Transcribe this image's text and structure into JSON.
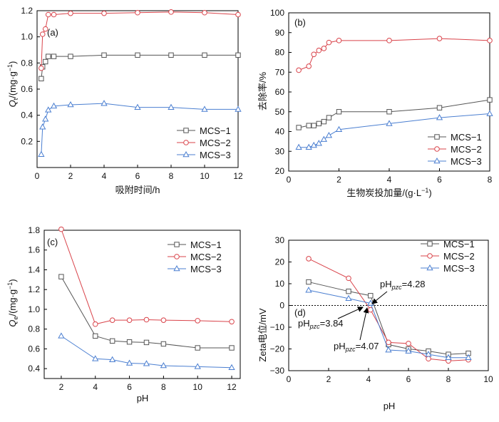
{
  "series_names": [
    "MCS−1",
    "MCS−2",
    "MCS−3"
  ],
  "colors": {
    "MCS−1": "#555555",
    "MCS−2": "#d9434a",
    "MCS−3": "#4b7fd1"
  },
  "markers": {
    "MCS−1": "square",
    "MCS−2": "circle",
    "MCS−3": "triangle"
  },
  "chart_data": [
    {
      "panel": "(a)",
      "type": "line",
      "xlabel": "吸附时间/h",
      "ylabel_main": "Q",
      "ylabel_sub": "t",
      "ylabel_unit": "/(mg·g",
      "ylabel_sup": "−1",
      "ylabel_close": ")",
      "xlim": [
        0,
        12
      ],
      "ylim": [
        0,
        1.2
      ],
      "xticks": [
        0,
        2,
        4,
        6,
        8,
        10,
        12
      ],
      "yticks": [
        0.2,
        0.4,
        0.6,
        0.8,
        1.0,
        1.2
      ],
      "xtick_labels": [
        "0",
        "2",
        "4",
        "6",
        "8",
        "10",
        "12"
      ],
      "ytick_labels": [
        "0.2",
        "0.4",
        "0.6",
        "0.8",
        "1.0",
        "1.2"
      ],
      "legend": "bottom-right",
      "series": [
        {
          "name": "MCS−1",
          "x": [
            0.25,
            0.33,
            0.5,
            0.67,
            1,
            2,
            4,
            6,
            8,
            10,
            12
          ],
          "y": [
            0.68,
            0.77,
            0.81,
            0.85,
            0.85,
            0.85,
            0.86,
            0.86,
            0.86,
            0.86,
            0.86
          ]
        },
        {
          "name": "MCS−2",
          "x": [
            0.25,
            0.33,
            0.5,
            0.67,
            1,
            2,
            4,
            6,
            8,
            10,
            12
          ],
          "y": [
            0.76,
            1.02,
            1.06,
            1.17,
            1.17,
            1.18,
            1.18,
            1.185,
            1.19,
            1.185,
            1.17
          ]
        },
        {
          "name": "MCS−3",
          "x": [
            0.25,
            0.33,
            0.5,
            0.67,
            1,
            2,
            4,
            6,
            8,
            10,
            12
          ],
          "y": [
            0.1,
            0.31,
            0.37,
            0.44,
            0.47,
            0.48,
            0.49,
            0.46,
            0.46,
            0.445,
            0.445
          ]
        }
      ]
    },
    {
      "panel": "(b)",
      "type": "line",
      "xlabel": "生物炭投加量/(g·L",
      "xlabel_sup": "−1",
      "xlabel_close": ")",
      "ylabel": "去除率/%",
      "xlim": [
        0,
        8
      ],
      "ylim": [
        20,
        100
      ],
      "xticks": [
        0,
        2,
        4,
        6,
        8
      ],
      "yticks": [
        20,
        30,
        40,
        50,
        60,
        70,
        80,
        90,
        100
      ],
      "xtick_labels": [
        "0",
        "2",
        "4",
        "6",
        "8"
      ],
      "ytick_labels": [
        "20",
        "30",
        "40",
        "50",
        "60",
        "70",
        "80",
        "90",
        "100"
      ],
      "legend": "bottom-right",
      "series": [
        {
          "name": "MCS−1",
          "x": [
            0.4,
            0.8,
            1.0,
            1.2,
            1.4,
            1.6,
            2,
            4,
            6,
            8
          ],
          "y": [
            42,
            43,
            43,
            44,
            45,
            47,
            50,
            50,
            52,
            56
          ]
        },
        {
          "name": "MCS−2",
          "x": [
            0.4,
            0.8,
            1.0,
            1.2,
            1.4,
            1.6,
            2,
            4,
            6,
            8
          ],
          "y": [
            71,
            73,
            79,
            81,
            82,
            85,
            86,
            86,
            87,
            86
          ]
        },
        {
          "name": "MCS−3",
          "x": [
            0.4,
            0.8,
            1.0,
            1.2,
            1.4,
            1.6,
            2,
            4,
            6,
            8
          ],
          "y": [
            32,
            32,
            33,
            34,
            36,
            38,
            41,
            44,
            47,
            49
          ]
        }
      ]
    },
    {
      "panel": "(c)",
      "type": "line",
      "xlabel": "pH",
      "ylabel_main": "Q",
      "ylabel_sub": "e",
      "ylabel_unit": "/(mg·g",
      "ylabel_sup": "−1",
      "ylabel_close": ")",
      "xlim": [
        1,
        12.5
      ],
      "ylim": [
        0.3,
        1.8
      ],
      "xticks": [
        2,
        4,
        6,
        8,
        10,
        12
      ],
      "yticks": [
        0.4,
        0.6,
        0.8,
        1.0,
        1.2,
        1.4,
        1.6,
        1.8
      ],
      "xtick_labels": [
        "2",
        "4",
        "6",
        "8",
        "10",
        "12"
      ],
      "ytick_labels": [
        "0.4",
        "0.6",
        "0.8",
        "1.0",
        "1.2",
        "1.4",
        "1.6",
        "1.8"
      ],
      "legend": "top-right",
      "series": [
        {
          "name": "MCS−1",
          "x": [
            2,
            4,
            5,
            6,
            7,
            8,
            10,
            12
          ],
          "y": [
            1.33,
            0.73,
            0.68,
            0.67,
            0.665,
            0.65,
            0.61,
            0.61
          ]
        },
        {
          "name": "MCS−2",
          "x": [
            2,
            4,
            5,
            6,
            7,
            8,
            10,
            12
          ],
          "y": [
            1.81,
            0.85,
            0.89,
            0.89,
            0.895,
            0.89,
            0.885,
            0.875
          ]
        },
        {
          "name": "MCS−3",
          "x": [
            2,
            4,
            5,
            6,
            7,
            8,
            10,
            12
          ],
          "y": [
            0.73,
            0.5,
            0.49,
            0.455,
            0.45,
            0.43,
            0.42,
            0.41
          ]
        }
      ]
    },
    {
      "panel": "(d)",
      "type": "line",
      "xlabel": "pH",
      "ylabel": "Zeta电位/mV",
      "xlim": [
        0,
        10
      ],
      "ylim": [
        -30,
        30
      ],
      "xticks": [
        0,
        2,
        4,
        6,
        8,
        10
      ],
      "yticks": [
        -30,
        -20,
        -10,
        0,
        10,
        20,
        30
      ],
      "xtick_labels": [
        "0",
        "2",
        "4",
        "6",
        "8",
        "10"
      ],
      "ytick_labels": [
        "−30",
        "−20",
        "−10",
        "0",
        "10",
        "20",
        "30"
      ],
      "legend": "top-right",
      "annotations": [
        {
          "pre": "pH",
          "sub": "pzc",
          "post": "=4.28"
        },
        {
          "pre": "pH",
          "sub": "pzc",
          "post": "=3.84"
        },
        {
          "pre": "pH",
          "sub": "pzc",
          "post": "=4.07"
        }
      ],
      "series": [
        {
          "name": "MCS−1",
          "x": [
            1,
            3,
            4.1,
            5,
            6,
            7,
            8,
            9
          ],
          "y": [
            10.8,
            6.5,
            4.5,
            -18,
            -20,
            -21,
            -22.5,
            -22
          ]
        },
        {
          "name": "MCS−2",
          "x": [
            1,
            3,
            4.1,
            5,
            6,
            7,
            8,
            9
          ],
          "y": [
            21.5,
            12.5,
            -2,
            -17,
            -17.5,
            -24.5,
            -25.5,
            -25
          ]
        },
        {
          "name": "MCS−3",
          "x": [
            1,
            3,
            4.1,
            5,
            6,
            7,
            8,
            9
          ],
          "y": [
            7,
            3.2,
            1,
            -20.5,
            -21,
            -22.5,
            -24,
            -24
          ]
        }
      ]
    }
  ]
}
